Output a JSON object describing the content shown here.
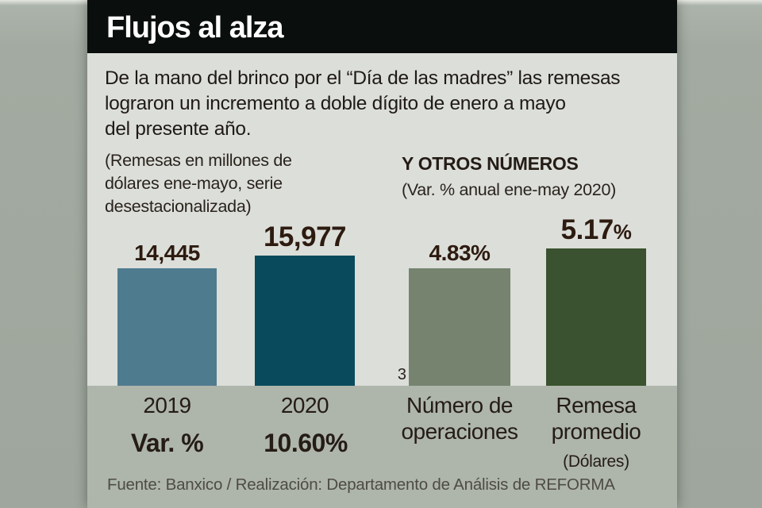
{
  "header": {
    "title": "Flujos al alza"
  },
  "intro_lines": [
    "De la mano del brinco por el “Día de las madres” las remesas",
    "lograron un incremento a doble dígito de enero a mayo",
    "del presente año."
  ],
  "chart_data": [
    {
      "type": "bar",
      "name": "remesas",
      "subtitle_lines": [
        "(Remesas en millones de",
        "dólares ene-mayo, serie",
        "desestacionalizada)"
      ],
      "categories": [
        "2019",
        "2020"
      ],
      "values": [
        14445,
        15977
      ],
      "data_labels": [
        "14,445",
        "15,977"
      ],
      "unit": "millones de dólares",
      "ylim": [
        0,
        16500
      ],
      "bottom_row": {
        "label": "Var. %",
        "value": "10.60%"
      },
      "bar_colors": [
        "#4f7b8f",
        "#0a4a5d"
      ]
    },
    {
      "type": "bar",
      "name": "otros-numeros",
      "title": "Y OTROS NÚMEROS",
      "subtitle": "(Var. % anual ene-may 2020)",
      "categories": [
        [
          "Número de",
          "operaciones"
        ],
        [
          "Remesa",
          "promedio"
        ]
      ],
      "category_sublabels": [
        "",
        "(Dólares)"
      ],
      "values": [
        4.83,
        5.17
      ],
      "data_labels": [
        "4.83%",
        "5.17%"
      ],
      "data_label_parts": {
        "number": "5.17",
        "percent": "%"
      },
      "footnote_marker": "3",
      "unit": "% var. anual",
      "ylim": [
        0,
        5.5
      ],
      "bar_colors": [
        "#75836f",
        "#3a522f"
      ]
    }
  ],
  "footer": {
    "source": "Fuente: Banxico / Realización: Departamento de Análisis de REFORMA"
  },
  "colors": {
    "header_bg": "#0a0f0d",
    "header_text": "#ffffff",
    "body_bg": "#dcded9",
    "band_bg": "#aeb5ab",
    "text_dark": "#241c15",
    "value_text": "#2d1b10",
    "source_text": "#4d4c43",
    "outer_bg": "#a2aaa1"
  }
}
